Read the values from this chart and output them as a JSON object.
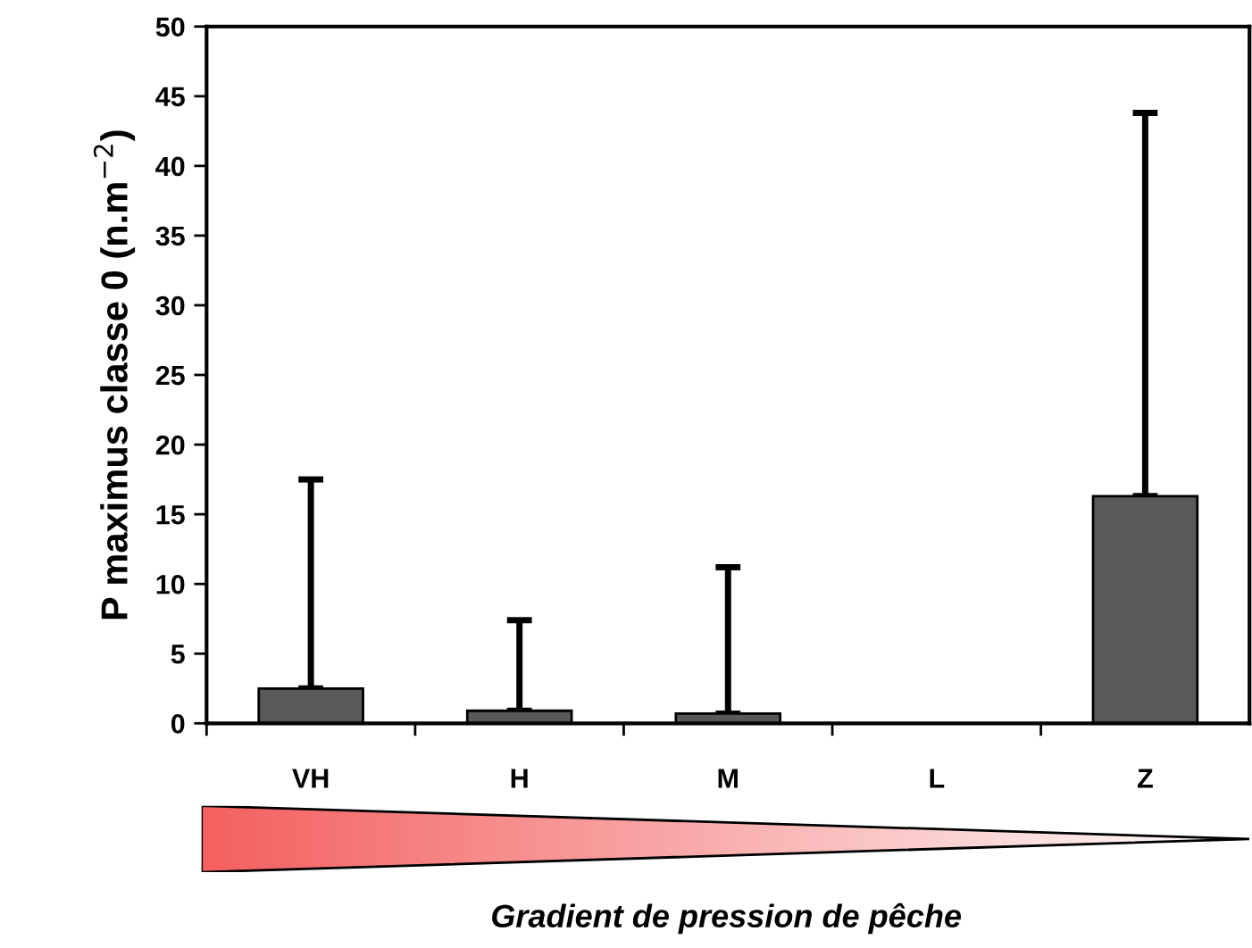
{
  "chart_data": {
    "type": "bar",
    "categories": [
      "VH",
      "H",
      "M",
      "L",
      "Z"
    ],
    "values": [
      2.5,
      0.9,
      0.7,
      0,
      16.3
    ],
    "errors": [
      [
        2.5,
        17.5
      ],
      [
        0.9,
        7.4
      ],
      [
        0.7,
        11.2
      ],
      null,
      [
        16.3,
        43.8
      ]
    ],
    "color": "#595959",
    "ylim": [
      0,
      50
    ],
    "yticks": [
      0,
      5,
      10,
      15,
      20,
      25,
      30,
      35,
      40,
      45,
      50
    ],
    "ylabel": "P maximus classe 0 (n.m$^{−2}$)",
    "xlabel": "Gradient de pression de pêche",
    "grid": false,
    "legend": false
  }
}
